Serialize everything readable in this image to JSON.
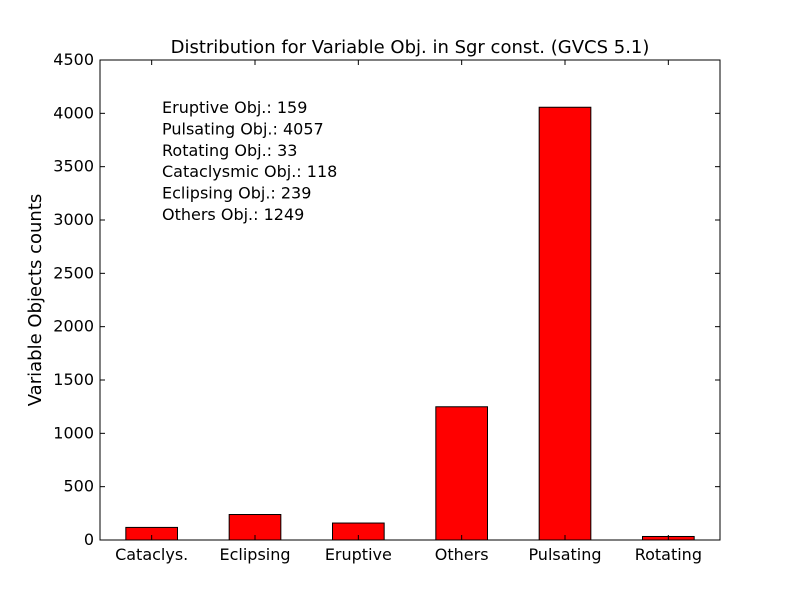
{
  "chart_data": {
    "type": "bar",
    "title": "Distribution for Variable Obj. in Sgr const. (GVCS 5.1)",
    "xlabel": "",
    "ylabel": "Variable Objects counts",
    "categories": [
      "Cataclys.",
      "Eclipsing",
      "Eruptive",
      "Others",
      "Pulsating",
      "Rotating"
    ],
    "values": [
      118,
      239,
      159,
      1249,
      4057,
      33
    ],
    "ylim": [
      0,
      4500
    ],
    "yticks": [
      0,
      500,
      1000,
      1500,
      2000,
      2500,
      3000,
      3500,
      4000,
      4500
    ],
    "bar_color": "#ff0000",
    "bar_edge_color": "#000000",
    "grid": false,
    "annotations": [
      "Eruptive Obj.: 159",
      "Pulsating Obj.: 4057",
      "Rotating Obj.: 33",
      "Cataclysmic Obj.: 118",
      "Eclipsing Obj.: 239",
      "Others Obj.: 1249"
    ]
  }
}
